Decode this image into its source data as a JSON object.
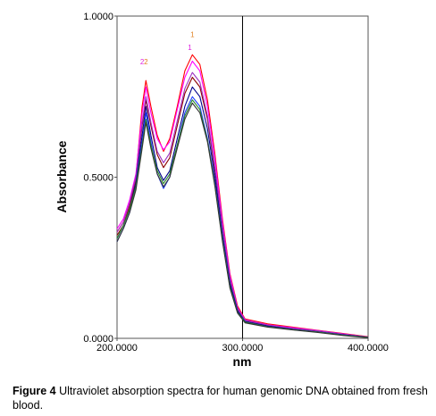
{
  "chart_data": {
    "type": "line",
    "title": "",
    "xlabel": "nm",
    "ylabel": "Absorbance",
    "xlim": [
      200,
      400
    ],
    "ylim": [
      0,
      1
    ],
    "x_ticks": [
      "200.0000",
      "300.0000",
      "400.0000"
    ],
    "y_ticks": [
      "0.0000",
      "0.5000",
      "1.0000"
    ],
    "grid": false,
    "vertical_marker_x": 300,
    "peak_labels": [
      {
        "text": "1",
        "x": 260,
        "y": 0.935,
        "color": "#e08020"
      },
      {
        "text": "1",
        "x": 258,
        "y": 0.895,
        "color": "#e020e0"
      },
      {
        "text": "2",
        "x": 223,
        "y": 0.85,
        "color": "#e08020"
      },
      {
        "text": "2",
        "x": 220,
        "y": 0.85,
        "color": "#e020e0"
      }
    ],
    "series": [
      {
        "color": "#ff0000",
        "values": [
          [
            200,
            0.33
          ],
          [
            205,
            0.36
          ],
          [
            210,
            0.42
          ],
          [
            215,
            0.5
          ],
          [
            220,
            0.72
          ],
          [
            223,
            0.8
          ],
          [
            227,
            0.72
          ],
          [
            232,
            0.63
          ],
          [
            237,
            0.58
          ],
          [
            242,
            0.62
          ],
          [
            248,
            0.72
          ],
          [
            254,
            0.83
          ],
          [
            260,
            0.88
          ],
          [
            266,
            0.85
          ],
          [
            272,
            0.74
          ],
          [
            278,
            0.57
          ],
          [
            284,
            0.37
          ],
          [
            290,
            0.2
          ],
          [
            296,
            0.1
          ],
          [
            302,
            0.06
          ],
          [
            320,
            0.045
          ],
          [
            340,
            0.035
          ],
          [
            360,
            0.025
          ],
          [
            380,
            0.015
          ],
          [
            400,
            0.005
          ]
        ]
      },
      {
        "color": "#ff00ff",
        "values": [
          [
            200,
            0.34
          ],
          [
            205,
            0.37
          ],
          [
            210,
            0.43
          ],
          [
            215,
            0.51
          ],
          [
            220,
            0.7
          ],
          [
            223,
            0.78
          ],
          [
            227,
            0.7
          ],
          [
            232,
            0.62
          ],
          [
            237,
            0.585
          ],
          [
            242,
            0.61
          ],
          [
            248,
            0.71
          ],
          [
            254,
            0.81
          ],
          [
            260,
            0.86
          ],
          [
            266,
            0.83
          ],
          [
            272,
            0.72
          ],
          [
            278,
            0.555
          ],
          [
            284,
            0.36
          ],
          [
            290,
            0.195
          ],
          [
            296,
            0.095
          ],
          [
            302,
            0.058
          ],
          [
            320,
            0.042
          ],
          [
            340,
            0.033
          ],
          [
            360,
            0.024
          ],
          [
            380,
            0.014
          ],
          [
            400,
            0.004
          ]
        ]
      },
      {
        "color": "#8b0000",
        "values": [
          [
            200,
            0.32
          ],
          [
            205,
            0.35
          ],
          [
            210,
            0.41
          ],
          [
            215,
            0.49
          ],
          [
            220,
            0.66
          ],
          [
            223,
            0.74
          ],
          [
            227,
            0.66
          ],
          [
            232,
            0.57
          ],
          [
            237,
            0.53
          ],
          [
            242,
            0.56
          ],
          [
            248,
            0.66
          ],
          [
            254,
            0.76
          ],
          [
            260,
            0.81
          ],
          [
            266,
            0.78
          ],
          [
            272,
            0.68
          ],
          [
            278,
            0.52
          ],
          [
            284,
            0.34
          ],
          [
            290,
            0.18
          ],
          [
            296,
            0.09
          ],
          [
            302,
            0.055
          ],
          [
            320,
            0.04
          ],
          [
            340,
            0.03
          ],
          [
            360,
            0.022
          ],
          [
            380,
            0.012
          ],
          [
            400,
            0.004
          ]
        ]
      },
      {
        "color": "#9b30c0",
        "values": [
          [
            200,
            0.33
          ],
          [
            205,
            0.36
          ],
          [
            210,
            0.42
          ],
          [
            215,
            0.5
          ],
          [
            220,
            0.67
          ],
          [
            223,
            0.75
          ],
          [
            227,
            0.67
          ],
          [
            232,
            0.58
          ],
          [
            237,
            0.545
          ],
          [
            242,
            0.575
          ],
          [
            248,
            0.675
          ],
          [
            254,
            0.775
          ],
          [
            260,
            0.825
          ],
          [
            266,
            0.795
          ],
          [
            272,
            0.69
          ],
          [
            278,
            0.53
          ],
          [
            284,
            0.345
          ],
          [
            290,
            0.185
          ],
          [
            296,
            0.092
          ],
          [
            302,
            0.056
          ],
          [
            320,
            0.041
          ],
          [
            340,
            0.031
          ],
          [
            360,
            0.023
          ],
          [
            380,
            0.013
          ],
          [
            400,
            0.004
          ]
        ]
      },
      {
        "color": "#00008b",
        "values": [
          [
            200,
            0.31
          ],
          [
            205,
            0.35
          ],
          [
            210,
            0.4
          ],
          [
            215,
            0.48
          ],
          [
            220,
            0.63
          ],
          [
            223,
            0.72
          ],
          [
            227,
            0.63
          ],
          [
            232,
            0.53
          ],
          [
            237,
            0.49
          ],
          [
            242,
            0.52
          ],
          [
            248,
            0.62
          ],
          [
            254,
            0.72
          ],
          [
            260,
            0.78
          ],
          [
            266,
            0.75
          ],
          [
            272,
            0.65
          ],
          [
            278,
            0.5
          ],
          [
            284,
            0.32
          ],
          [
            290,
            0.17
          ],
          [
            296,
            0.085
          ],
          [
            302,
            0.052
          ],
          [
            320,
            0.038
          ],
          [
            340,
            0.028
          ],
          [
            360,
            0.02
          ],
          [
            380,
            0.011
          ],
          [
            400,
            0.003
          ]
        ]
      },
      {
        "color": "#1e3cff",
        "values": [
          [
            200,
            0.3
          ],
          [
            205,
            0.34
          ],
          [
            210,
            0.39
          ],
          [
            215,
            0.47
          ],
          [
            220,
            0.61
          ],
          [
            223,
            0.7
          ],
          [
            227,
            0.61
          ],
          [
            232,
            0.51
          ],
          [
            237,
            0.465
          ],
          [
            242,
            0.5
          ],
          [
            248,
            0.6
          ],
          [
            254,
            0.7
          ],
          [
            260,
            0.75
          ],
          [
            266,
            0.72
          ],
          [
            272,
            0.62
          ],
          [
            278,
            0.48
          ],
          [
            284,
            0.31
          ],
          [
            290,
            0.16
          ],
          [
            296,
            0.08
          ],
          [
            302,
            0.05
          ],
          [
            320,
            0.036
          ],
          [
            340,
            0.027
          ],
          [
            360,
            0.019
          ],
          [
            380,
            0.01
          ],
          [
            400,
            0.003
          ]
        ]
      },
      {
        "color": "#2a8a2a",
        "values": [
          [
            200,
            0.31
          ],
          [
            205,
            0.35
          ],
          [
            210,
            0.4
          ],
          [
            215,
            0.47
          ],
          [
            220,
            0.6
          ],
          [
            223,
            0.68
          ],
          [
            227,
            0.6
          ],
          [
            232,
            0.52
          ],
          [
            237,
            0.48
          ],
          [
            242,
            0.51
          ],
          [
            248,
            0.6
          ],
          [
            254,
            0.69
          ],
          [
            260,
            0.74
          ],
          [
            266,
            0.71
          ],
          [
            272,
            0.615
          ],
          [
            278,
            0.475
          ],
          [
            284,
            0.305
          ],
          [
            290,
            0.16
          ],
          [
            296,
            0.08
          ],
          [
            302,
            0.05
          ],
          [
            320,
            0.036
          ],
          [
            340,
            0.027
          ],
          [
            360,
            0.019
          ],
          [
            380,
            0.01
          ],
          [
            400,
            0.003
          ]
        ]
      },
      {
        "color": "#333333",
        "values": [
          [
            200,
            0.3
          ],
          [
            205,
            0.34
          ],
          [
            210,
            0.39
          ],
          [
            215,
            0.46
          ],
          [
            220,
            0.59
          ],
          [
            223,
            0.67
          ],
          [
            227,
            0.59
          ],
          [
            232,
            0.51
          ],
          [
            237,
            0.47
          ],
          [
            242,
            0.5
          ],
          [
            248,
            0.59
          ],
          [
            254,
            0.68
          ],
          [
            260,
            0.73
          ],
          [
            266,
            0.7
          ],
          [
            272,
            0.61
          ],
          [
            278,
            0.47
          ],
          [
            284,
            0.3
          ],
          [
            290,
            0.155
          ],
          [
            296,
            0.078
          ],
          [
            302,
            0.048
          ],
          [
            320,
            0.035
          ],
          [
            340,
            0.026
          ],
          [
            360,
            0.018
          ],
          [
            380,
            0.009
          ],
          [
            400,
            0.002
          ]
        ]
      }
    ]
  },
  "caption": {
    "figure_label": "Figure 4",
    "text": " Ultraviolet absorption spectra for human genomic DNA obtained from fresh blood."
  }
}
